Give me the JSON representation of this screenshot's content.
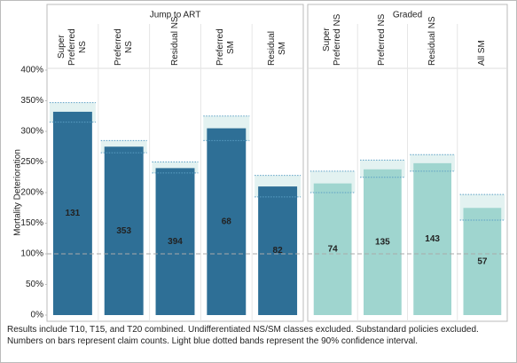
{
  "chart_data": [
    {
      "type": "bar",
      "title": "Jump to ART",
      "y_label": "Mortality Deterioration",
      "categories": [
        "Super\nPreferred\nNS",
        "Preferred\nNS",
        "Residual NS",
        "Preferred\nSM",
        "Residual\nSM"
      ],
      "values": [
        332,
        275,
        240,
        305,
        210
      ],
      "ci_low": [
        315,
        265,
        232,
        285,
        193
      ],
      "ci_high": [
        347,
        285,
        250,
        325,
        228
      ],
      "counts": [
        131,
        353,
        394,
        68,
        82
      ],
      "color": "#2e6f96",
      "ci_color": "#5b9fc4",
      "ylim": [
        0,
        400
      ],
      "yticks": [
        {
          "value": 0,
          "label": "0%"
        },
        {
          "value": 50,
          "label": "50%"
        },
        {
          "value": 100,
          "label": "100%"
        },
        {
          "value": 150,
          "label": "150%"
        },
        {
          "value": 200,
          "label": "200%"
        },
        {
          "value": 250,
          "label": "250%"
        },
        {
          "value": 300,
          "label": "300%"
        },
        {
          "value": 350,
          "label": "350%"
        },
        {
          "value": 400,
          "label": "400%"
        }
      ],
      "reference_line": 100
    },
    {
      "type": "bar",
      "title": "Graded",
      "categories": [
        "Super\nPreferred NS",
        "Preferred NS",
        "Residual NS",
        "All SM"
      ],
      "values": [
        215,
        238,
        248,
        175
      ],
      "ci_low": [
        200,
        225,
        235,
        155
      ],
      "ci_high": [
        235,
        253,
        262,
        197
      ],
      "counts": [
        74,
        135,
        143,
        57
      ],
      "color": "#9fd5cf",
      "ci_color": "#5b9fc4",
      "ylim": [
        0,
        400
      ],
      "reference_line": 100
    }
  ],
  "notes": [
    "Results include T10, T15, and T20 combined. Undifferentiated NS/SM classes excluded. Substandard policies excluded.",
    "Numbers on bars represent claim counts. Light blue dotted bands represent the 90% confidence interval."
  ]
}
